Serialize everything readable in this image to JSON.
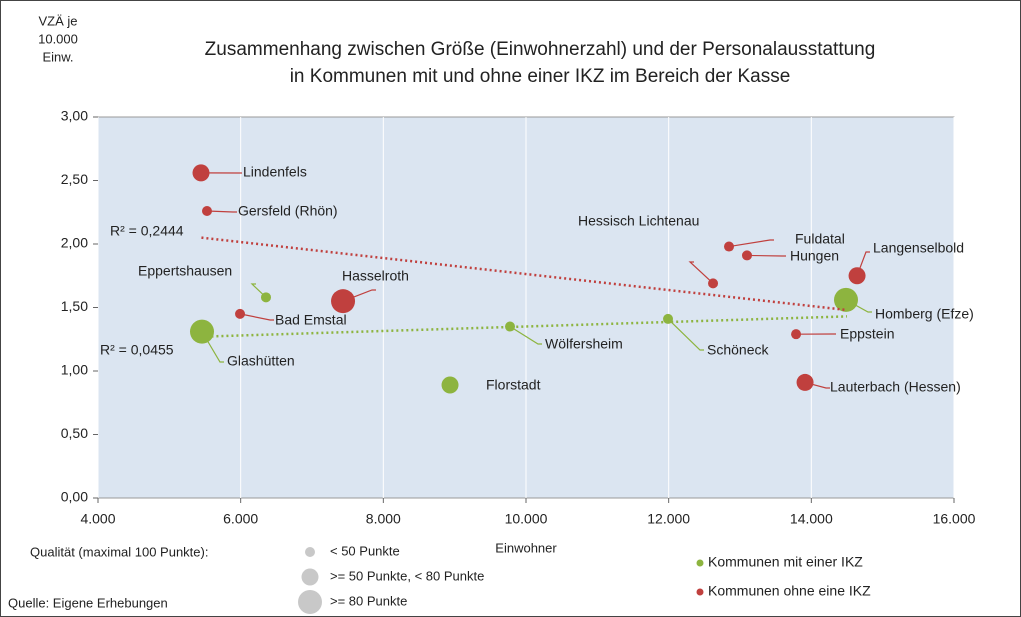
{
  "chart_data": {
    "type": "scatter",
    "title": [
      "Zusammenhang zwischen Größe (Einwohnerzahl) und der Personalausstattung",
      "in Kommunen mit und ohne einer IKZ im Bereich der Kasse"
    ],
    "ylabel": [
      "VZÄ je",
      "10.000",
      "Einw."
    ],
    "xlabel": "Einwohner",
    "source": "Quelle: Eigene Erhebungen",
    "xlim": [
      4000,
      16000
    ],
    "xticks": [
      {
        "value": 4000,
        "label": "4.000"
      },
      {
        "value": 6000,
        "label": "6.000"
      },
      {
        "value": 8000,
        "label": "8.000"
      },
      {
        "value": 10000,
        "label": "10.000"
      },
      {
        "value": 12000,
        "label": "12.000"
      },
      {
        "value": 14000,
        "label": "14.000"
      },
      {
        "value": 16000,
        "label": "16.000"
      }
    ],
    "ylim": [
      0,
      3
    ],
    "yticks": [
      {
        "value": 0,
        "label": "0,00"
      },
      {
        "value": 0.5,
        "label": "0,50"
      },
      {
        "value": 1,
        "label": "1,00"
      },
      {
        "value": 1.5,
        "label": "1,50"
      },
      {
        "value": 2,
        "label": "2,00"
      },
      {
        "value": 2.5,
        "label": "2,50"
      },
      {
        "value": 3,
        "label": "3,00"
      }
    ],
    "grid": "x",
    "size_legend": {
      "title": "Qualität (maximal 100 Punkte):",
      "classes": [
        "< 50 Punkte",
        ">= 50 Punkte, < 80 Punkte",
        ">= 80 Punkte"
      ]
    },
    "series": [
      {
        "name": "Kommunen mit einer IKZ",
        "color": "#8db43f",
        "labels": [
          "Eppertshausen",
          "Glashütten",
          "Wölfersheim",
          "Florstadt",
          "Schöneck",
          "Homberg (Efze)"
        ],
        "x": [
          6355,
          5458,
          9776,
          8935,
          11991,
          14486
        ],
        "values": [
          1.58,
          1.31,
          1.35,
          0.89,
          1.41,
          1.56
        ],
        "quality_class": [
          0,
          2,
          0,
          1,
          0,
          2
        ],
        "trend": {
          "x": [
            5450,
            14500
          ],
          "values": [
            1.27,
            1.43
          ],
          "label": "R² = 0,0455"
        }
      },
      {
        "name": "Kommunen ohne eine IKZ",
        "color": "#c0403e",
        "labels": [
          "Lindenfels",
          "Gersfeld (Rhön)",
          "Hasselroth",
          "Bad Emstal",
          "Hessisch Lichtenau",
          "Fuldatal",
          "Hungen",
          "Langenselbold",
          "Eppstein",
          "Lauterbach (Hessen)"
        ],
        "x": [
          5444,
          5528,
          7435,
          5991,
          12622,
          12846,
          13098,
          14641,
          13786,
          13912
        ],
        "values": [
          2.56,
          2.26,
          1.55,
          1.45,
          1.69,
          1.98,
          1.91,
          1.75,
          1.29,
          0.91
        ],
        "quality_class": [
          1,
          0,
          2,
          0,
          0,
          0,
          0,
          1,
          0,
          1
        ],
        "trend": {
          "x": [
            5450,
            14500
          ],
          "values": [
            2.05,
            1.48
          ],
          "label": "R² = 0,2444"
        }
      }
    ]
  }
}
